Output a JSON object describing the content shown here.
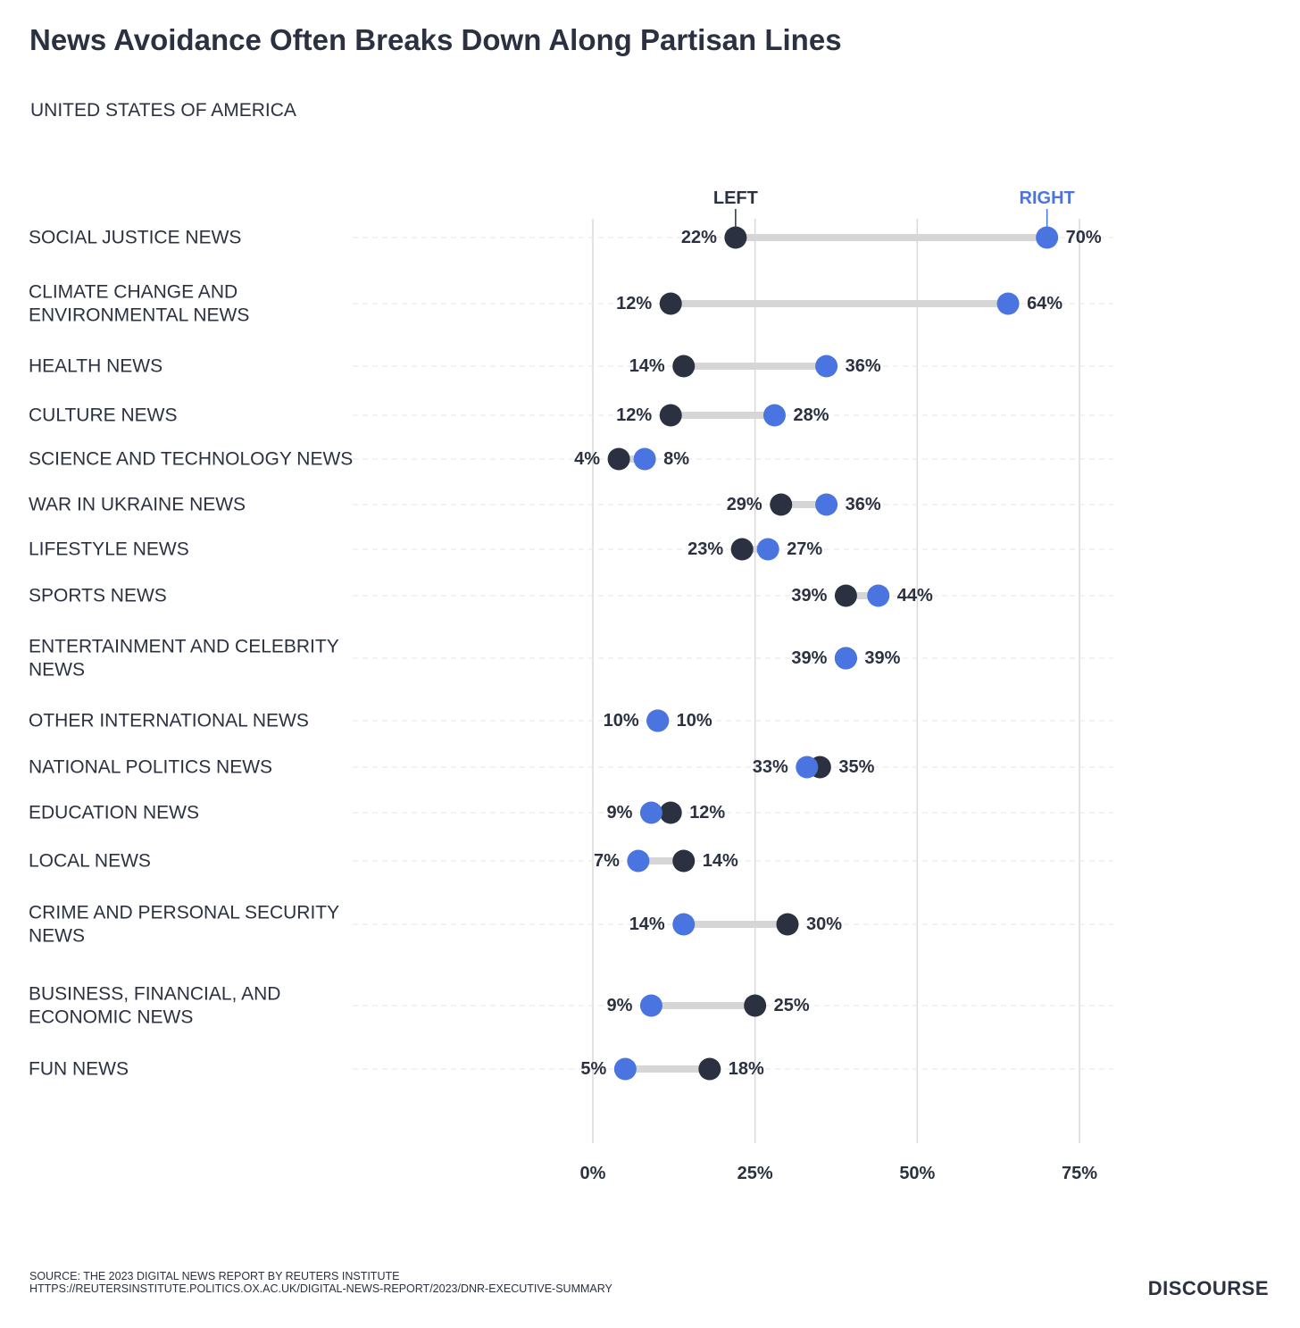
{
  "title": "News Avoidance Often Breaks Down Along Partisan Lines",
  "subtitle": "UNITED STATES OF AMERICA",
  "legend": {
    "left": "LEFT",
    "right": "RIGHT"
  },
  "colors": {
    "left": "#2b3140",
    "right": "#4a74e0",
    "connector": "#d6d6d6",
    "grid": "#d9d9d9"
  },
  "chart_data": {
    "type": "dumbbell",
    "title": "News Avoidance Often Breaks Down Along Partisan Lines",
    "subtitle": "UNITED STATES OF AMERICA",
    "xlabel": "",
    "ylabel": "",
    "xlim": [
      0,
      75
    ],
    "ticks": [
      0,
      25,
      50,
      75
    ],
    "tick_labels": [
      "0%",
      "25%",
      "50%",
      "75%"
    ],
    "series_names": [
      "LEFT",
      "RIGHT"
    ],
    "rows": [
      {
        "label": [
          "SOCIAL JUSTICE NEWS"
        ],
        "left": 22,
        "right": 70
      },
      {
        "label": [
          "CLIMATE CHANGE AND",
          "ENVIRONMENTAL NEWS"
        ],
        "left": 12,
        "right": 64
      },
      {
        "label": [
          "HEALTH NEWS"
        ],
        "left": 14,
        "right": 36
      },
      {
        "label": [
          "CULTURE NEWS"
        ],
        "left": 12,
        "right": 28
      },
      {
        "label": [
          "SCIENCE AND TECHNOLOGY NEWS"
        ],
        "left": 4,
        "right": 8
      },
      {
        "label": [
          "WAR IN UKRAINE NEWS"
        ],
        "left": 29,
        "right": 36
      },
      {
        "label": [
          "LIFESTYLE NEWS"
        ],
        "left": 23,
        "right": 27
      },
      {
        "label": [
          "SPORTS NEWS"
        ],
        "left": 39,
        "right": 44
      },
      {
        "label": [
          "ENTERTAINMENT AND CELEBRITY",
          "NEWS"
        ],
        "left": 39,
        "right": 39
      },
      {
        "label": [
          "OTHER INTERNATIONAL NEWS"
        ],
        "left": 10,
        "right": 10
      },
      {
        "label": [
          "NATIONAL POLITICS NEWS"
        ],
        "left": 35,
        "right": 33
      },
      {
        "label": [
          "EDUCATION NEWS"
        ],
        "left": 12,
        "right": 9
      },
      {
        "label": [
          "LOCAL NEWS"
        ],
        "left": 14,
        "right": 7
      },
      {
        "label": [
          "CRIME AND PERSONAL SECURITY",
          "NEWS"
        ],
        "left": 30,
        "right": 14
      },
      {
        "label": [
          "BUSINESS, FINANCIAL, AND",
          "ECONOMIC NEWS"
        ],
        "left": 25,
        "right": 9
      },
      {
        "label": [
          "FUN NEWS"
        ],
        "left": 18,
        "right": 5
      }
    ]
  },
  "footer": {
    "source_line1": "SOURCE: THE 2023 DIGITAL NEWS REPORT BY REUTERS INSTITUTE",
    "source_line2": "HTTPS://REUTERSINSTITUTE.POLITICS.OX.AC.UK/DIGITAL-NEWS-REPORT/2023/DNR-EXECUTIVE-SUMMARY",
    "brand": "DISCOURSE"
  }
}
